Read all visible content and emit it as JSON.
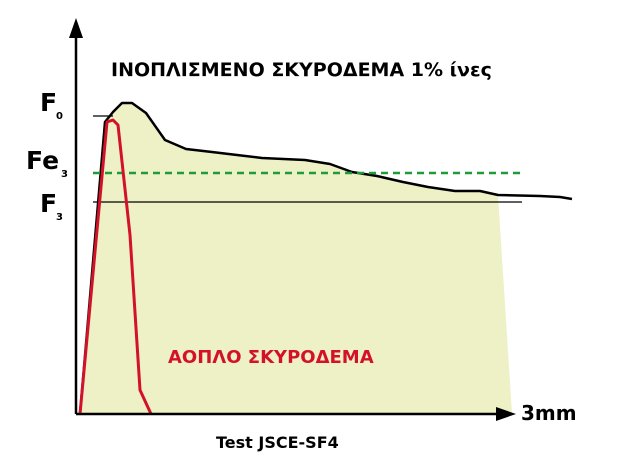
{
  "diagram": {
    "title": "ΙΝΟΠΛΙΣΜΕΝΟ ΣΚΥΡΟΔΕΜΑ 1% ίνες",
    "plain_concrete_label": "ΑΟΠΛΟ ΣΚΥΡΟΔΕΜΑ",
    "test_caption": "Test JSCE-SF4",
    "x_axis_end_label": "3mm",
    "y_labels": {
      "f0": {
        "main": "F",
        "sub": "0"
      },
      "fe3": {
        "main": "Fe",
        "sub": "3"
      },
      "f3": {
        "main": "F",
        "sub": "3"
      }
    },
    "colors": {
      "fill_area": "#eef0c6",
      "fiber_curve": "#000000",
      "plain_curve": "#d3122a",
      "fe3_line": "#1e9c3a",
      "axes": "#000000"
    }
  }
}
